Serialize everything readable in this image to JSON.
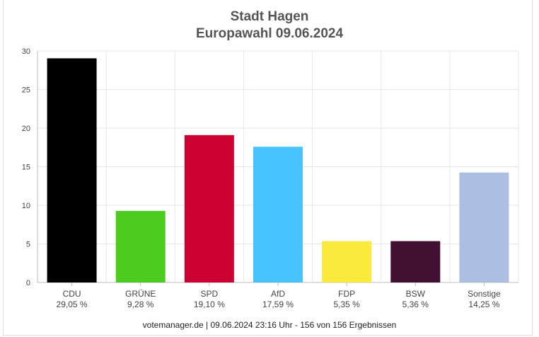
{
  "chart_data": {
    "type": "bar",
    "title": "Stadt Hagen",
    "subtitle": "Europawahl 09.06.2024",
    "categories": [
      "CDU",
      "GRÜNE",
      "SPD",
      "AfD",
      "FDP",
      "BSW",
      "Sonstige"
    ],
    "value_labels": [
      "29,05 %",
      "9,28 %",
      "19,10 %",
      "17,59 %",
      "5,35 %",
      "5,36 %",
      "14,25 %"
    ],
    "values": [
      29.05,
      9.28,
      19.1,
      17.59,
      5.35,
      5.36,
      14.25
    ],
    "colors": [
      "#000000",
      "#4ccc1f",
      "#cc0033",
      "#47c4ff",
      "#f9ea3c",
      "#421030",
      "#adbee3"
    ],
    "ylim": [
      0,
      30
    ],
    "yticks": [
      0,
      5,
      10,
      15,
      20,
      25,
      30
    ],
    "xlabel": "",
    "ylabel": "",
    "grid": true
  },
  "footer": "votemanager.de | 09.06.2024 23:16 Uhr - 156 von 156 Ergebnissen"
}
